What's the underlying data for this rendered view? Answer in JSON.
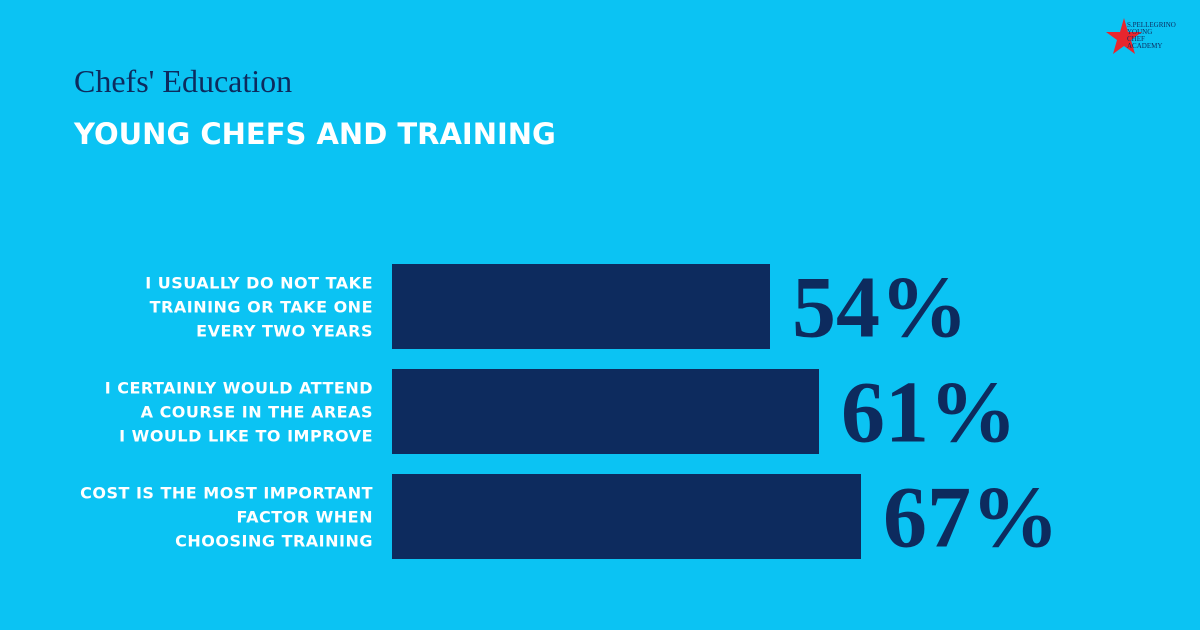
{
  "logo": [
    "S.PELLEGRINO",
    "YOUNG",
    "CHEF",
    "ACADEMY"
  ],
  "chart_data": {
    "type": "bar",
    "orientation": "horizontal",
    "title": "Chefs' Education",
    "subtitle": "YOUNG CHEFS AND TRAINING",
    "categories": [
      [
        "I USUALLY DO NOT TAKE",
        "TRAINING OR TAKE ONE",
        "EVERY TWO YEARS"
      ],
      [
        "I CERTAINLY WOULD ATTEND",
        "A COURSE IN THE AREAS",
        "I WOULD LIKE TO IMPROVE"
      ],
      [
        "COST IS THE MOST IMPORTANT",
        "FACTOR WHEN",
        "CHOOSING TRAINING"
      ]
    ],
    "values": [
      54,
      61,
      67
    ],
    "value_labels": [
      "54%",
      "61%",
      "67%"
    ],
    "color": "#0d2b5e"
  }
}
